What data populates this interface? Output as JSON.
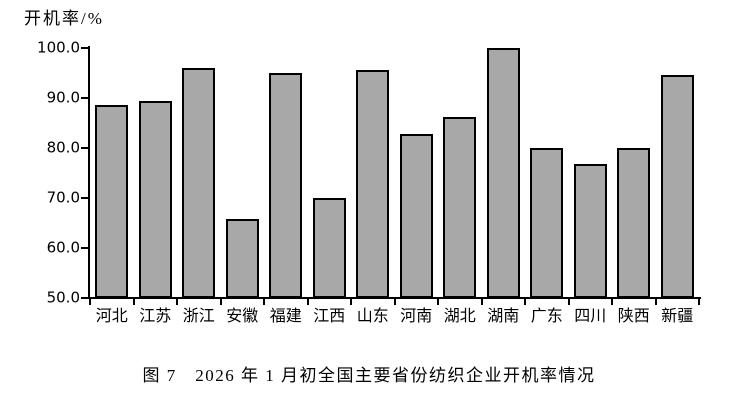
{
  "figure": {
    "y_axis_title": "开机率/%",
    "caption": "图 7　2026 年 1 月初全国主要省份纺织企业开机率情况"
  },
  "chart_data": {
    "type": "bar",
    "title": "图 7　2026 年 1 月初全国主要省份纺织企业开机率情况",
    "ylabel": "开机率/%",
    "xlabel": "",
    "ylim": [
      50.0,
      100.0
    ],
    "ytick_step": 10,
    "ytick_labels": [
      "50.0",
      "60.0",
      "70.0",
      "80.0",
      "90.0",
      "100.0"
    ],
    "grid": false,
    "legend": false,
    "bar_fill_color": "#a8a8a8",
    "bar_border_color": "#000000",
    "categories": [
      "河北",
      "江苏",
      "浙江",
      "安徽",
      "福建",
      "江西",
      "山东",
      "河南",
      "湖北",
      "湖南",
      "广东",
      "四川",
      "陕西",
      "新疆"
    ],
    "values": [
      88.6,
      89.4,
      96.0,
      65.8,
      95.0,
      70.0,
      95.6,
      82.7,
      86.2,
      100.0,
      80.0,
      76.7,
      80.0,
      94.6
    ]
  }
}
